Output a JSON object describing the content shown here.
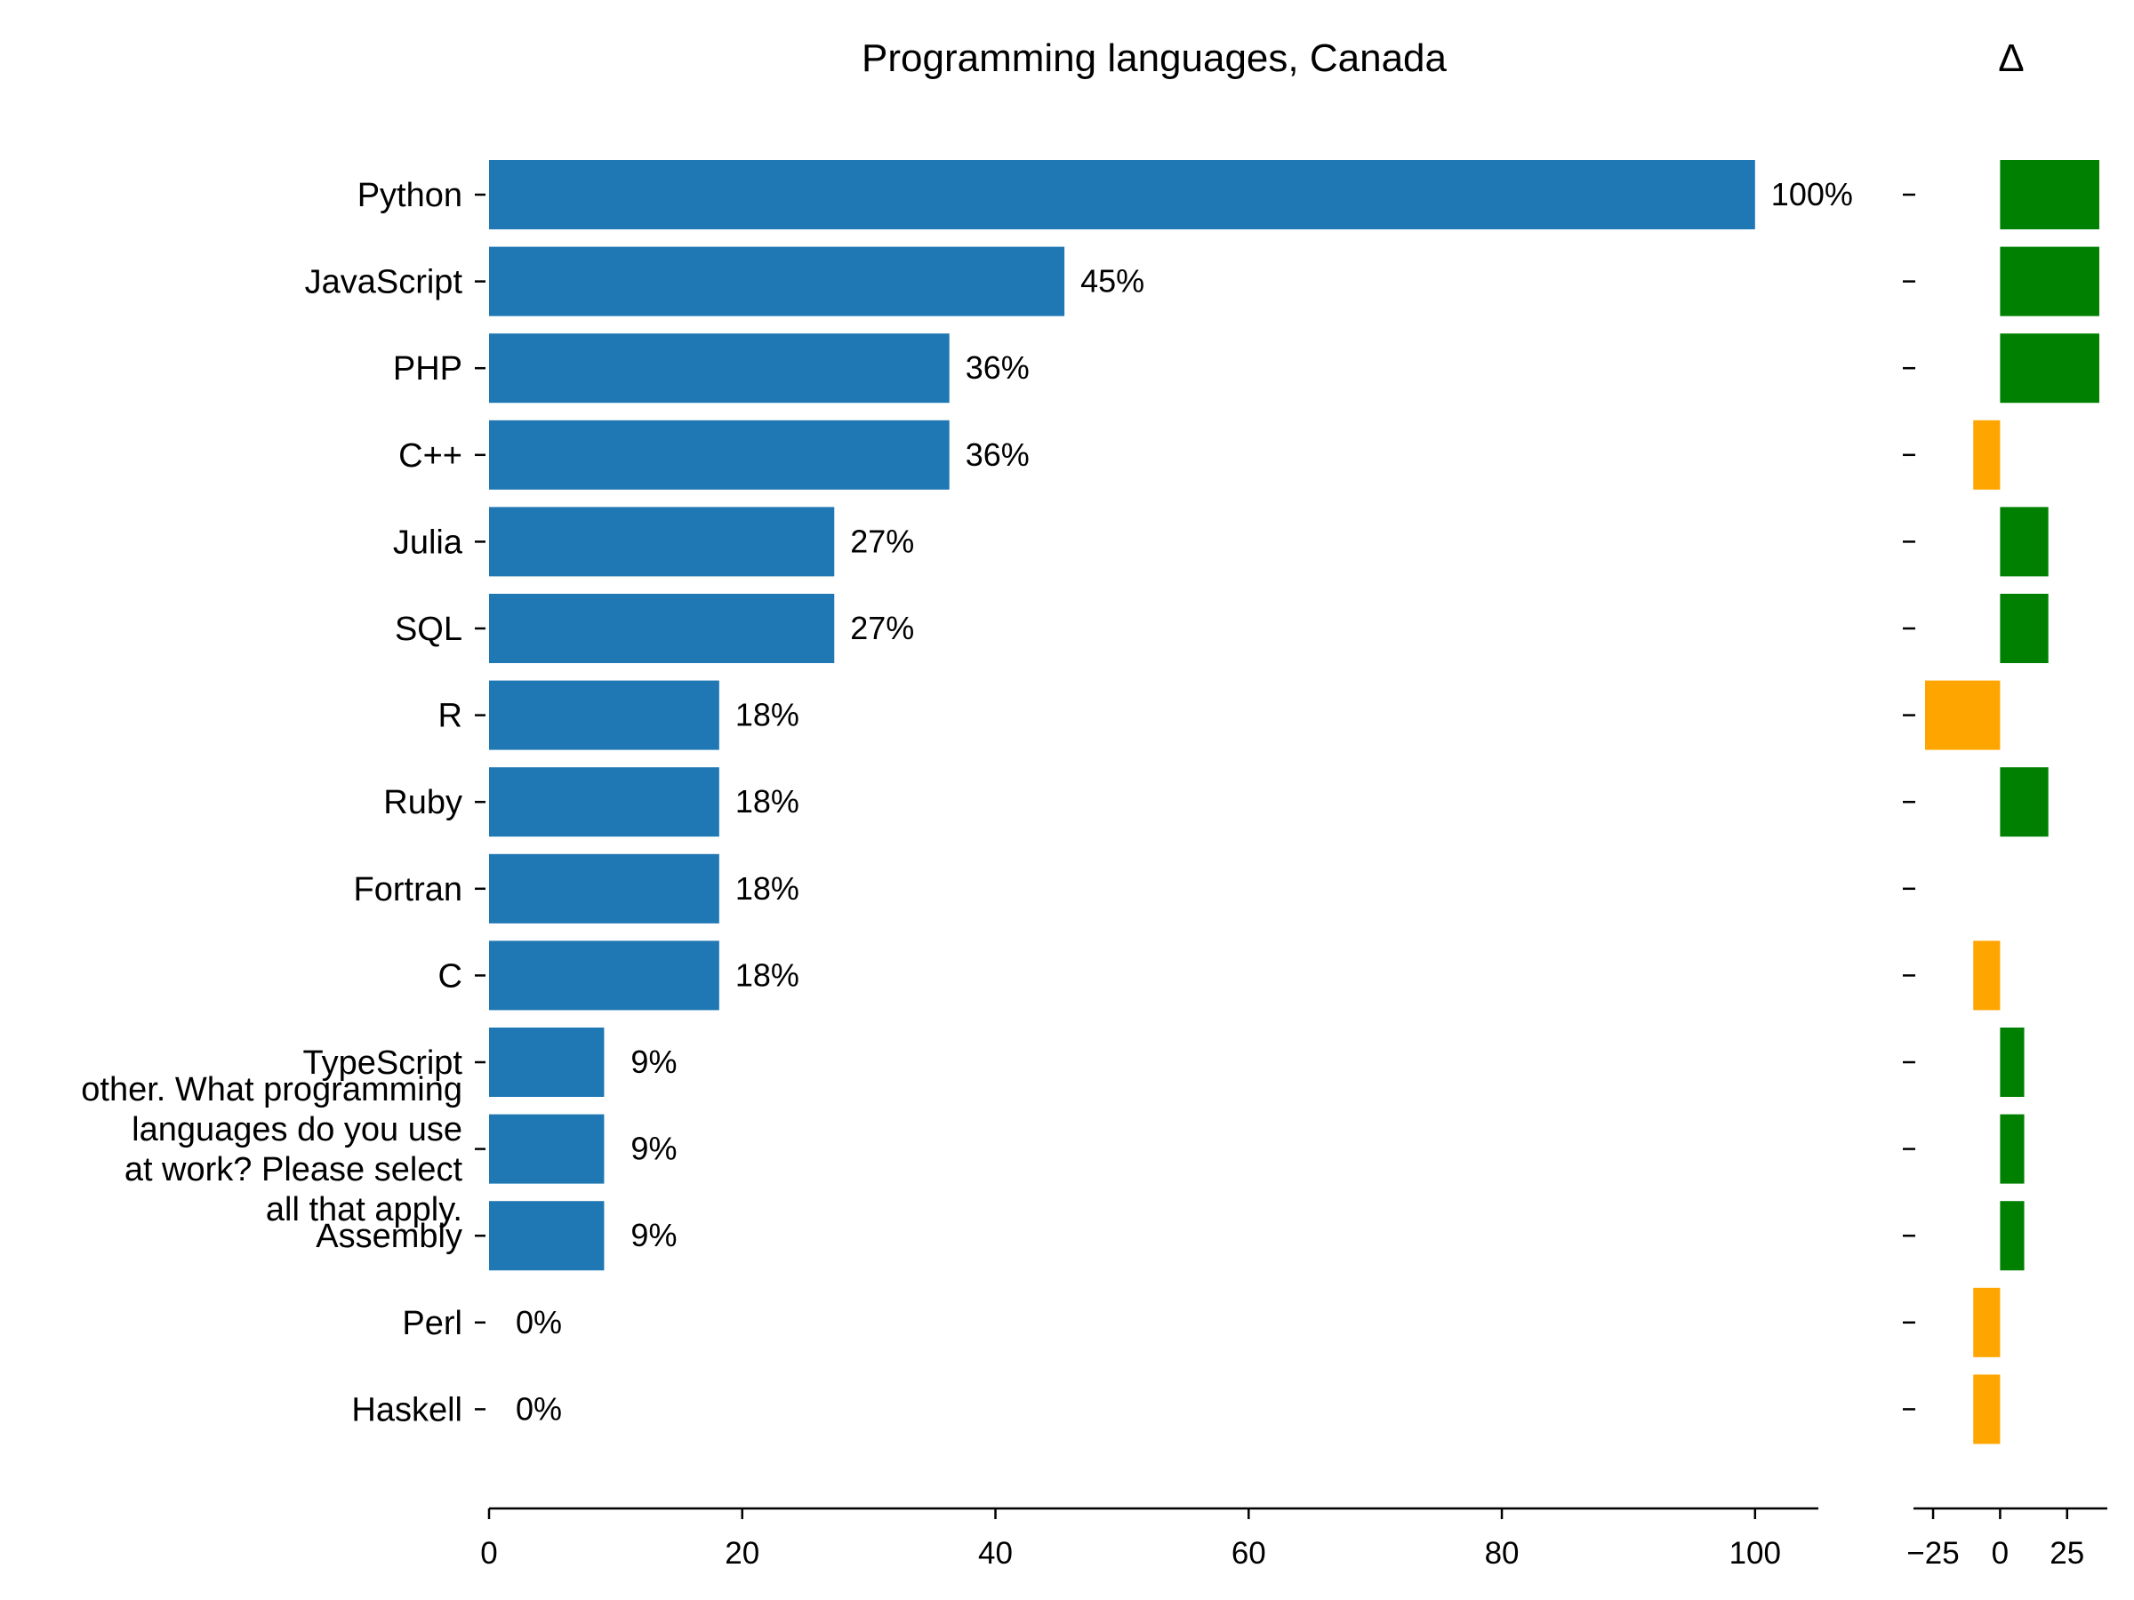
{
  "chart_data": [
    {
      "type": "bar",
      "orientation": "horizontal",
      "title": "Programming languages, Canada",
      "categories": [
        "Python",
        "JavaScript",
        "PHP",
        "C++",
        "Julia",
        "SQL",
        "R",
        "Ruby",
        "Fortran",
        "C",
        "TypeScript",
        "other. What programming languages do you use at work? Please select all that apply.",
        "Assembly",
        "Perl",
        "Haskell"
      ],
      "category_lines": {
        "11": [
          "other. What programming",
          "languages do you use",
          "at work? Please select",
          "all that apply."
        ]
      },
      "values": [
        100,
        45.45,
        36.36,
        36.36,
        27.27,
        27.27,
        18.18,
        18.18,
        18.18,
        18.18,
        9.09,
        9.09,
        9.09,
        0,
        0
      ],
      "value_labels": [
        "100%",
        "45%",
        "36%",
        "36%",
        "27%",
        "27%",
        "18%",
        "18%",
        "18%",
        "18%",
        "9%",
        "9%",
        "9%",
        "0%",
        "0%"
      ],
      "xlim": [
        0,
        105
      ],
      "xticks": [
        0,
        20,
        40,
        60,
        80,
        100
      ],
      "xtick_labels": [
        "0",
        "20",
        "40",
        "60",
        "80",
        "100"
      ],
      "xlabel": "",
      "ylabel": "",
      "bar_color": "#1f77b4",
      "grid": false,
      "legend": "none"
    },
    {
      "type": "bar",
      "orientation": "horizontal",
      "title": "Δ",
      "categories": [
        "Python",
        "JavaScript",
        "PHP",
        "C++",
        "Julia",
        "SQL",
        "R",
        "Ruby",
        "Fortran",
        "C",
        "TypeScript",
        "other. What programming languages do you use at work? Please select all that apply.",
        "Assembly",
        "Perl",
        "Haskell"
      ],
      "values": [
        37,
        37,
        37,
        -10,
        18,
        18,
        -28,
        18,
        0,
        -10,
        9,
        9,
        9,
        -10,
        -10
      ],
      "xlim": [
        -28,
        40
      ],
      "xticks": [
        -25,
        0,
        25
      ],
      "xtick_labels": [
        "−25",
        "0",
        "25"
      ],
      "positive_color": "#008000",
      "negative_color": "#ffa500",
      "grid": false,
      "legend": "none"
    }
  ]
}
